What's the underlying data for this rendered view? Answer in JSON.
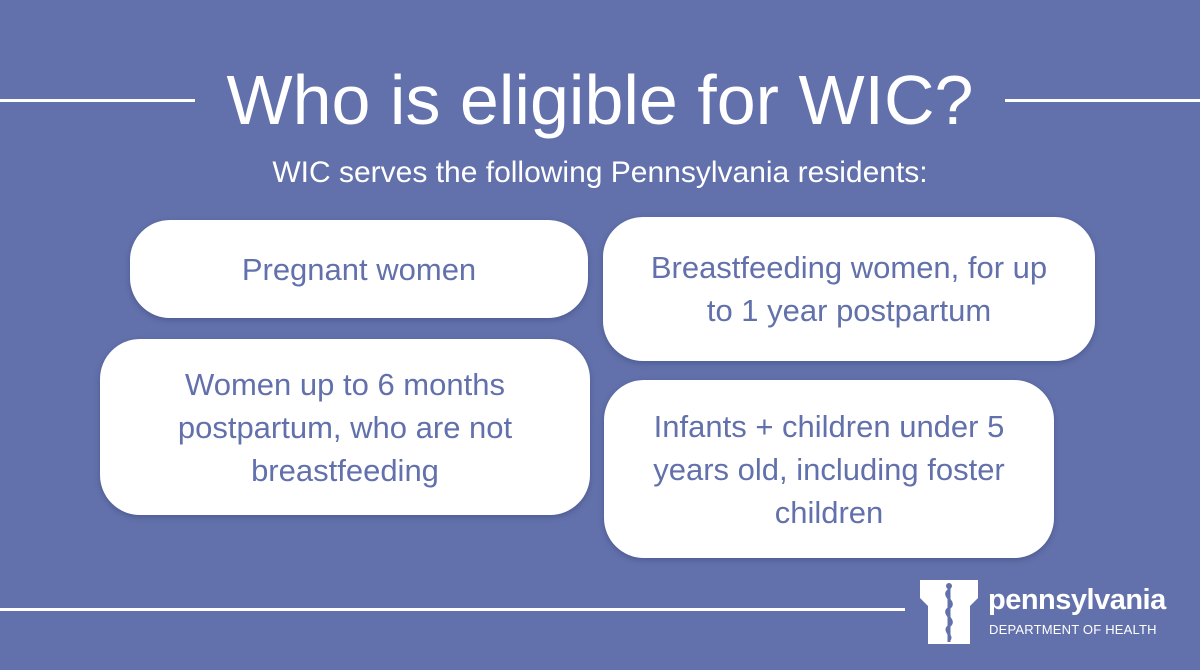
{
  "header": {
    "title": "Who is eligible for WIC?",
    "subtitle": "WIC serves the following Pennsylvania residents:"
  },
  "cards": [
    {
      "text": "Pregnant women"
    },
    {
      "text": "Breastfeeding women, for up to 1 year postpartum"
    },
    {
      "text": "Women up to 6 months postpartum, who are not breastfeeding"
    },
    {
      "text": "Infants + children under 5 years old, including foster children"
    }
  ],
  "logo": {
    "name": "pennsylvania",
    "department": "DEPARTMENT OF HEALTH",
    "icon": "keystone-caduceus-icon"
  },
  "colors": {
    "background": "#6271ab",
    "card": "#ffffff",
    "card_text": "#6271ab",
    "heading_text": "#ffffff"
  }
}
